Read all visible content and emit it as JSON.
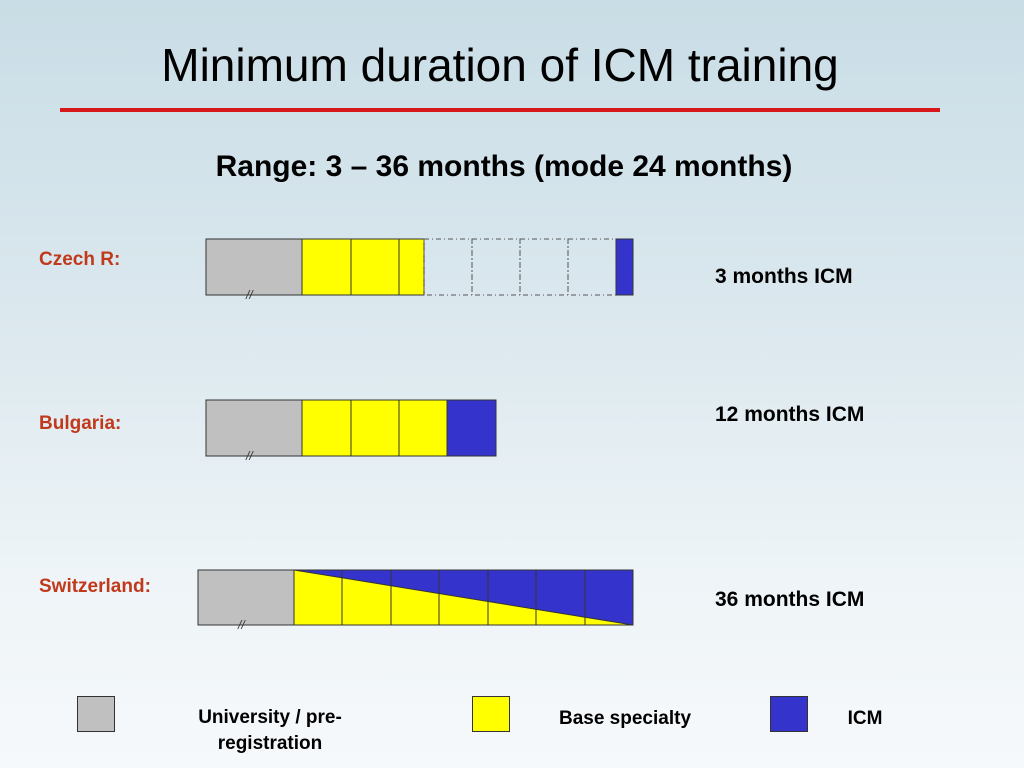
{
  "title": "Minimum duration of ICM training",
  "subtitle": "Range: 3 – 36 months (mode 24 months)",
  "colors": {
    "university": "#c0c0c0",
    "base": "#ffff00",
    "icm": "#3434cc",
    "accent_red": "#d6181c",
    "country_text": "#c0391b"
  },
  "rows": [
    {
      "country": "Czech R:",
      "icm_label": "3 months ICM"
    },
    {
      "country": "Bulgaria:",
      "icm_label": "12 months ICM"
    },
    {
      "country": "Switzerland:",
      "icm_label": "36 months ICM"
    }
  ],
  "break_mark": "//",
  "legend": [
    {
      "label": "University / pre-registration",
      "line1": "University / pre-",
      "line2": "registration",
      "color": "#c0c0c0"
    },
    {
      "label": "Base specialty",
      "color": "#ffff00"
    },
    {
      "label": "ICM",
      "color": "#3434cc"
    }
  ]
}
